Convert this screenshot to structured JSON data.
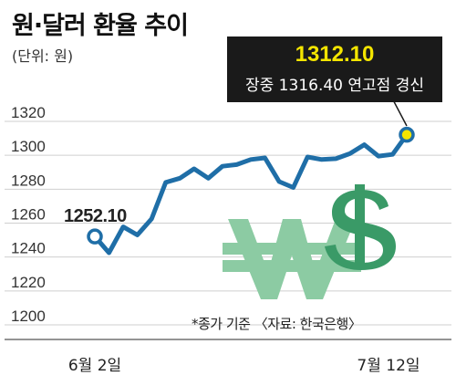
{
  "title": "원·달러 환율 추이",
  "unit_label": "(단위: 원)",
  "source_note": "*종가 기준 〈자료: 한국은행〉",
  "callout": {
    "value": "1312.10",
    "note": "장중 1316.40 연고점 경신"
  },
  "start_label": "1252.10",
  "colors": {
    "line": "#1f6ea7",
    "marker_start_fill": "#ffffff",
    "marker_end_fill": "#f4e500",
    "won_sign": "#8ccba3",
    "dollar_sign": "#3a9a67",
    "callout_bg": "#1a1a1a",
    "callout_value": "#f4e500"
  },
  "decorations": [
    "won-sign-icon",
    "dollar-sign-icon"
  ],
  "chart_data": {
    "type": "line",
    "title": "원·달러 환율 추이",
    "ylabel": "(단위: 원)",
    "ylim": [
      1200,
      1320
    ],
    "yticks": [
      1200,
      1220,
      1240,
      1260,
      1280,
      1300,
      1320
    ],
    "grid": true,
    "x_tick_labels": [
      "6월 2일",
      "7월 12일"
    ],
    "series": [
      {
        "values": [
          1252.1,
          1242.5,
          1257.8,
          1253.0,
          1262.5,
          1284.0,
          1286.5,
          1292.0,
          1286.5,
          1293.5,
          1294.5,
          1297.5,
          1298.5,
          1284.5,
          1281.0,
          1299.0,
          1297.5,
          1298.0,
          1301.0,
          1306.2,
          1299.5,
          1300.5,
          1312.1
        ]
      }
    ]
  }
}
